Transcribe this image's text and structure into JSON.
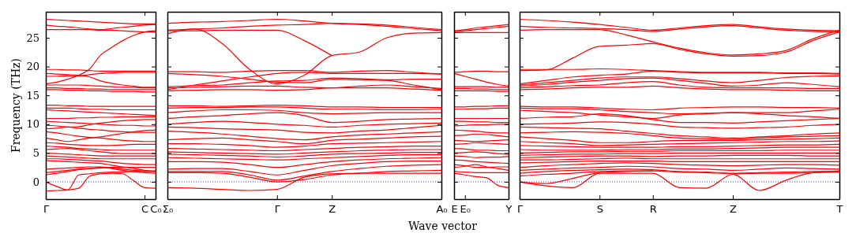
{
  "chart_data": [
    {
      "type": "line",
      "ylabel": "Frequency (THz)",
      "color": "#ff0000",
      "categories": [
        "Γ",
        null,
        null,
        null,
        null,
        null,
        null,
        null,
        null,
        "C",
        "C₀"
      ],
      "ylim": [
        -3,
        29.5
      ],
      "yticks": [
        0,
        5,
        10,
        15,
        20,
        25
      ],
      "ref_lines": [
        {
          "axis": "y",
          "value": 0,
          "color": "#0000ff",
          "line_style": "dotted"
        }
      ],
      "series": [
        {
          "values": [
            28.2,
            28.1,
            28.0,
            27.9,
            27.8,
            27.7,
            27.6,
            27.5,
            27.4,
            27.4,
            27.4
          ]
        },
        {
          "values": [
            27.2,
            27.0,
            26.9,
            26.7,
            26.5,
            26.4,
            26.6,
            26.8,
            27.0,
            27.2,
            27.3
          ]
        },
        {
          "values": [
            26.4,
            26.4,
            26.4,
            26.4,
            26.4,
            26.3,
            26.3,
            26.2,
            26.1,
            26.0,
            26.0
          ]
        },
        {
          "values": [
            17.0,
            17.3,
            17.8,
            18.5,
            19.6,
            22.0,
            23.3,
            24.5,
            25.4,
            26.0,
            26.2
          ]
        },
        {
          "values": [
            19.5,
            19.5,
            19.4,
            19.4,
            19.3,
            19.2,
            19.2,
            19.2,
            19.2,
            19.2,
            19.2
          ]
        },
        {
          "values": [
            18.8,
            18.7,
            18.6,
            18.5,
            18.2,
            17.5,
            17.1,
            16.8,
            16.6,
            16.4,
            16.4
          ]
        },
        {
          "values": [
            18.3,
            18.3,
            18.4,
            18.4,
            18.6,
            18.8,
            18.9,
            19.0,
            19.0,
            19.0,
            19.0
          ]
        },
        {
          "values": [
            16.8,
            16.8,
            16.8,
            16.8,
            16.7,
            16.6,
            16.5,
            16.4,
            16.4,
            16.3,
            16.3
          ]
        },
        {
          "values": [
            16.3,
            16.3,
            16.2,
            16.2,
            16.1,
            16.1,
            16.0,
            16.0,
            16.0,
            16.0,
            16.0
          ]
        },
        {
          "values": [
            16.0,
            16.0,
            15.9,
            15.9,
            15.8,
            15.8,
            15.7,
            15.7,
            15.7,
            15.6,
            15.6
          ]
        },
        {
          "values": [
            13.3,
            13.3,
            13.2,
            13.2,
            13.1,
            13.1,
            13.1,
            13.1,
            13.1,
            13.1,
            13.1
          ]
        },
        {
          "values": [
            12.8,
            12.8,
            12.8,
            12.7,
            12.6,
            12.6,
            12.5,
            12.5,
            12.5,
            12.5,
            12.5
          ]
        },
        {
          "values": [
            12.5,
            12.4,
            12.3,
            12.2,
            12.1,
            12.0,
            11.9,
            11.8,
            11.7,
            11.6,
            11.5
          ]
        },
        {
          "values": [
            11.0,
            11.0,
            11.0,
            11.1,
            11.1,
            11.2,
            11.2,
            11.3,
            11.3,
            11.3,
            11.3
          ]
        },
        {
          "values": [
            10.5,
            10.4,
            10.3,
            10.2,
            10.1,
            10.0,
            9.9,
            9.8,
            9.8,
            9.7,
            9.7
          ]
        },
        {
          "values": [
            9.8,
            9.7,
            9.5,
            9.6,
            9.9,
            10.2,
            10.4,
            10.6,
            10.7,
            10.8,
            10.8
          ]
        },
        {
          "values": [
            9.2,
            9.3,
            9.5,
            9.3,
            9.1,
            9.0,
            8.8,
            8.7,
            8.6,
            8.6,
            8.6
          ]
        },
        {
          "values": [
            8.7,
            8.5,
            8.2,
            7.9,
            7.7,
            7.6,
            7.4,
            7.2,
            7.1,
            7.0,
            7.0
          ]
        },
        {
          "values": [
            7.6,
            7.3,
            7.0,
            7.3,
            7.6,
            7.8,
            8.1,
            8.4,
            8.7,
            8.9,
            9.0
          ]
        },
        {
          "values": [
            6.8,
            6.7,
            6.5,
            6.4,
            6.3,
            6.3,
            6.3,
            6.4,
            6.5,
            6.5,
            6.5
          ]
        },
        {
          "values": [
            6.2,
            6.1,
            6.0,
            5.8,
            5.7,
            5.6,
            5.5,
            5.5,
            5.5,
            5.5,
            5.5
          ]
        },
        {
          "values": [
            5.6,
            5.7,
            5.8,
            5.6,
            5.4,
            5.2,
            5.0,
            4.9,
            4.9,
            4.9,
            4.9
          ]
        },
        {
          "values": [
            5.0,
            4.9,
            4.8,
            4.7,
            4.6,
            4.5,
            4.5,
            4.5,
            4.5,
            4.5,
            4.5
          ]
        },
        {
          "values": [
            4.5,
            4.4,
            4.3,
            4.2,
            4.1,
            4.0,
            4.0,
            4.0,
            4.0,
            4.0,
            4.0
          ]
        },
        {
          "values": [
            4.0,
            4.0,
            3.9,
            3.8,
            3.7,
            3.6,
            3.4,
            3.2,
            3.1,
            3.0,
            3.0
          ]
        },
        {
          "values": [
            3.7,
            3.6,
            3.5,
            3.4,
            3.3,
            3.2,
            2.9,
            2.6,
            2.5,
            2.5,
            2.5
          ]
        },
        {
          "values": [
            2.2,
            2.3,
            2.4,
            2.5,
            2.6,
            2.6,
            2.4,
            2.2,
            2.0,
            1.9,
            1.8
          ]
        },
        {
          "values": [
            1.6,
            1.8,
            2.0,
            2.2,
            2.3,
            2.4,
            2.5,
            2.5,
            2.3,
            2.0,
            1.9
          ]
        },
        {
          "values": [
            1.2,
            1.5,
            1.8,
            2.1,
            2.3,
            2.5,
            2.3,
            2.0,
            1.8,
            1.6,
            1.5
          ]
        },
        {
          "values": [
            0,
            -0.8,
            -1.4,
            1.2,
            1.4,
            1.6,
            1.7,
            1.7,
            1.8,
            1.8,
            1.8
          ]
        },
        {
          "values": [
            -1.6,
            -1.5,
            -1.4,
            -1.1,
            1.0,
            1.4,
            1.5,
            1.4,
            0.2,
            -1.0,
            -1.1
          ]
        }
      ]
    },
    {
      "type": "line",
      "color": "#ff0000",
      "xlabel": "Wave vector",
      "tick_labels": "x",
      "categories": [
        "Σ₀",
        null,
        null,
        null,
        "Γ",
        null,
        "Z",
        null,
        null,
        null,
        "A₀"
      ],
      "ylim": [
        -3,
        29.5
      ],
      "yticks": [
        0,
        5,
        10,
        15,
        20,
        25
      ],
      "ref_lines": [
        {
          "axis": "y",
          "value": 0,
          "color": "#0000ff",
          "line_style": "dotted"
        }
      ],
      "series": [
        {
          "values": [
            27.5,
            27.7,
            27.8,
            28.0,
            28.2,
            27.9,
            27.5,
            27.3,
            27.0,
            26.6,
            26.2
          ]
        },
        {
          "values": [
            26.3,
            26.5,
            26.7,
            27.0,
            27.2,
            27.3,
            27.5,
            27.4,
            27.2,
            26.8,
            26.4
          ]
        },
        {
          "values": [
            25.7,
            26.5,
            24.0,
            19.5,
            17.0,
            18.5,
            21.9,
            22.5,
            25.0,
            25.8,
            25.9
          ]
        },
        {
          "values": [
            26.2,
            26.2,
            26.3,
            26.3,
            26.3,
            24.5,
            21.9,
            null,
            null,
            null,
            null
          ]
        },
        {
          "values": [
            19.1,
            19.1,
            19.0,
            19.2,
            19.3,
            19.3,
            19.0,
            19.2,
            19.3,
            19.0,
            18.7
          ]
        },
        {
          "values": [
            18.8,
            18.6,
            18.3,
            17.8,
            17.3,
            17.2,
            17.8,
            17.7,
            17.6,
            16.8,
            16.0
          ]
        },
        {
          "values": [
            16.0,
            16.8,
            17.5,
            18.2,
            18.8,
            19.0,
            18.8,
            18.8,
            18.8,
            18.8,
            18.7
          ]
        },
        {
          "values": [
            16.5,
            16.7,
            16.8,
            17.2,
            17.5,
            17.6,
            18.0,
            17.9,
            17.7,
            17.8,
            17.8
          ]
        },
        {
          "values": [
            16.3,
            16.4,
            16.5,
            16.6,
            16.6,
            16.4,
            16.3,
            16.6,
            16.8,
            16.5,
            16.2
          ]
        },
        {
          "values": [
            15.8,
            15.9,
            16.0,
            16.0,
            15.9,
            16.0,
            16.3,
            16.3,
            16.3,
            16.1,
            15.9
          ]
        },
        {
          "values": [
            13.2,
            13.2,
            13.1,
            13.2,
            13.3,
            13.2,
            13.0,
            13.0,
            12.9,
            12.9,
            12.9
          ]
        },
        {
          "values": [
            12.8,
            12.9,
            12.9,
            13.0,
            13.0,
            12.8,
            12.6,
            12.6,
            12.5,
            12.5,
            12.6
          ]
        },
        {
          "values": [
            12.0,
            12.3,
            12.5,
            12.5,
            12.4,
            12.0,
            11.8,
            11.9,
            12.0,
            12.0,
            12.0
          ]
        },
        {
          "values": [
            11.0,
            11.3,
            11.5,
            11.8,
            12.0,
            11.5,
            10.3,
            10.5,
            10.8,
            10.9,
            11.0
          ]
        },
        {
          "values": [
            10.0,
            10.3,
            10.5,
            10.3,
            10.0,
            9.8,
            9.5,
            9.8,
            10.0,
            10.1,
            10.2
          ]
        },
        {
          "values": [
            9.5,
            9.4,
            9.2,
            9.1,
            9.0,
            8.6,
            8.5,
            8.8,
            9.0,
            9.4,
            9.8
          ]
        },
        {
          "values": [
            8.8,
            8.6,
            8.3,
            7.9,
            7.5,
            7.3,
            7.8,
            8.1,
            8.3,
            8.5,
            8.7
          ]
        },
        {
          "values": [
            7.3,
            7.5,
            7.6,
            7.3,
            7.0,
            6.6,
            7.2,
            7.4,
            7.6,
            7.8,
            7.9
          ]
        },
        {
          "values": [
            6.6,
            6.6,
            6.5,
            6.3,
            6.0,
            6.2,
            6.6,
            6.7,
            6.8,
            6.9,
            7.0
          ]
        },
        {
          "values": [
            5.8,
            5.7,
            5.6,
            5.5,
            5.4,
            5.6,
            5.8,
            6.0,
            6.1,
            6.2,
            6.2
          ]
        },
        {
          "values": [
            5.2,
            5.1,
            5.0,
            4.9,
            4.8,
            5.0,
            5.2,
            5.4,
            5.5,
            5.6,
            5.6
          ]
        },
        {
          "values": [
            4.8,
            4.7,
            4.6,
            4.5,
            4.3,
            4.5,
            4.8,
            4.9,
            5.0,
            5.1,
            5.1
          ]
        },
        {
          "values": [
            4.2,
            4.1,
            4.0,
            3.9,
            3.8,
            4.0,
            4.2,
            4.4,
            4.6,
            4.7,
            4.7
          ]
        },
        {
          "values": [
            3.5,
            3.5,
            3.4,
            3.0,
            2.5,
            3.0,
            3.5,
            3.8,
            4.0,
            4.1,
            4.2
          ]
        },
        {
          "values": [
            2.2,
            2.3,
            2.3,
            1.8,
            1.2,
            2.0,
            2.8,
            3.2,
            3.5,
            3.6,
            3.6
          ]
        },
        {
          "values": [
            1.8,
            1.8,
            1.8,
            1.2,
            0.3,
            1.0,
            1.8,
            2.3,
            2.7,
            2.9,
            3.0
          ]
        },
        {
          "values": [
            1.6,
            1.6,
            1.5,
            0.8,
            0,
            0.4,
            1.2,
            1.5,
            1.8,
            1.9,
            2.0
          ]
        },
        {
          "values": [
            -1.0,
            -1.1,
            -1.3,
            -1.5,
            -1.3,
            0.8,
            1.4,
            1.5,
            1.5,
            1.5,
            1.5
          ]
        }
      ]
    },
    {
      "type": "line",
      "color": "#ff0000",
      "tick_labels": "x",
      "categories": [
        "E",
        "E₀",
        null,
        null,
        null,
        "Y"
      ],
      "ylim": [
        -3,
        29.5
      ],
      "yticks": [
        0,
        5,
        10,
        15,
        20,
        25
      ],
      "ref_lines": [
        {
          "axis": "y",
          "value": 0,
          "color": "#0000ff",
          "line_style": "dotted"
        }
      ],
      "series": [
        {
          "values": [
            26.2,
            26.4,
            26.7,
            26.9,
            27.1,
            27.3
          ]
        },
        {
          "values": [
            26.0,
            26.2,
            26.4,
            26.6,
            26.8,
            27.0
          ]
        },
        {
          "values": [
            25.9,
            25.9,
            25.9,
            25.9,
            25.9,
            25.9
          ]
        },
        {
          "values": [
            19.0,
            19.1,
            19.2,
            19.2,
            19.1,
            19.1
          ]
        },
        {
          "values": [
            18.8,
            18.3,
            17.8,
            17.3,
            16.9,
            16.6
          ]
        },
        {
          "values": [
            16.5,
            16.5,
            16.5,
            16.5,
            16.4,
            16.4
          ]
        },
        {
          "values": [
            16.2,
            16.2,
            16.1,
            16.1,
            16.0,
            16.0
          ]
        },
        {
          "values": [
            15.8,
            15.8,
            15.8,
            15.8,
            15.7,
            15.7
          ]
        },
        {
          "values": [
            13.0,
            13.0,
            13.1,
            13.1,
            13.2,
            13.2
          ]
        },
        {
          "values": [
            12.6,
            12.6,
            12.7,
            12.7,
            12.8,
            12.8
          ]
        },
        {
          "values": [
            11.0,
            11.0,
            11.0,
            11.0,
            11.0,
            11.0
          ]
        },
        {
          "values": [
            10.5,
            10.5,
            10.4,
            10.4,
            10.3,
            10.3
          ]
        },
        {
          "values": [
            9.7,
            9.8,
            9.9,
            9.9,
            10.0,
            10.0
          ]
        },
        {
          "values": [
            9.0,
            8.9,
            8.8,
            8.6,
            8.5,
            8.5
          ]
        },
        {
          "values": [
            8.0,
            8.1,
            8.3,
            8.2,
            8.0,
            7.8
          ]
        },
        {
          "values": [
            7.2,
            7.1,
            7.0,
            7.1,
            7.2,
            7.3
          ]
        },
        {
          "values": [
            6.5,
            6.6,
            6.8,
            6.7,
            6.6,
            6.5
          ]
        },
        {
          "values": [
            5.8,
            5.7,
            5.5,
            5.5,
            5.4,
            5.4
          ]
        },
        {
          "values": [
            5.0,
            5.1,
            5.2,
            5.1,
            4.9,
            4.8
          ]
        },
        {
          "values": [
            4.5,
            4.4,
            4.2,
            4.3,
            4.3,
            4.4
          ]
        },
        {
          "values": [
            3.8,
            3.7,
            3.5,
            3.4,
            3.3,
            3.2
          ]
        },
        {
          "values": [
            3.0,
            2.8,
            2.5,
            2.5,
            2.6,
            2.6
          ]
        },
        {
          "values": [
            2.5,
            2.7,
            3.0,
            2.6,
            2.3,
            2.0
          ]
        },
        {
          "values": [
            1.8,
            1.7,
            1.6,
            1.6,
            1.6,
            1.6
          ]
        },
        {
          "values": [
            1.5,
            1.2,
            0.9,
            0.7,
            -0.6,
            -1.0
          ]
        }
      ]
    },
    {
      "type": "line",
      "color": "#ff0000",
      "tick_labels": "x",
      "categories": [
        "Γ",
        null,
        null,
        "S",
        null,
        "R",
        null,
        null,
        "Z",
        null,
        null,
        null,
        "T"
      ],
      "ylim": [
        -3,
        29.5
      ],
      "yticks": [
        0,
        5,
        10,
        15,
        20,
        25
      ],
      "ref_lines": [
        {
          "axis": "y",
          "value": 0,
          "color": "#0000ff",
          "line_style": "dotted"
        }
      ],
      "series": [
        {
          "values": [
            28.2,
            28.0,
            27.7,
            27.3,
            26.8,
            26.3,
            26.7,
            27.1,
            27.3,
            26.9,
            26.5,
            26.3,
            26.2
          ]
        },
        {
          "values": [
            27.0,
            26.8,
            26.7,
            26.6,
            26.4,
            26.1,
            26.5,
            26.9,
            27.1,
            26.7,
            26.3,
            26.1,
            26.0
          ]
        },
        {
          "values": [
            26.3,
            26.4,
            26.4,
            26.4,
            25.5,
            24.3,
            23.2,
            22.4,
            22.0,
            22.2,
            22.8,
            24.8,
            26.3
          ]
        },
        {
          "values": [
            19.3,
            19.4,
            21.5,
            23.5,
            23.7,
            24.0,
            23.0,
            22.2,
            21.8,
            21.9,
            22.5,
            24.5,
            26.0
          ]
        },
        {
          "values": [
            19.5,
            19.5,
            19.5,
            19.6,
            19.5,
            19.3,
            19.1,
            19.0,
            19.0,
            19.0,
            18.9,
            18.9,
            18.8
          ]
        },
        {
          "values": [
            17.0,
            17.6,
            18.2,
            18.5,
            18.7,
            19.2,
            19.0,
            18.9,
            18.9,
            18.9,
            18.8,
            18.8,
            18.7
          ]
        },
        {
          "values": [
            16.8,
            17.2,
            17.6,
            18.0,
            18.2,
            18.2,
            17.9,
            17.5,
            17.2,
            17.6,
            18.1,
            18.3,
            18.4
          ]
        },
        {
          "values": [
            16.6,
            16.9,
            17.3,
            17.6,
            17.9,
            18.0,
            17.6,
            17.1,
            16.6,
            16.8,
            17.2,
            16.9,
            16.5
          ]
        },
        {
          "values": [
            16.3,
            16.5,
            16.7,
            16.8,
            17.2,
            17.4,
            16.8,
            16.4,
            16.3,
            16.3,
            16.3,
            16.2,
            16.2
          ]
        },
        {
          "values": [
            16.0,
            16.1,
            16.3,
            16.4,
            16.4,
            16.6,
            16.3,
            16.1,
            16.0,
            16.0,
            15.9,
            15.8,
            15.8
          ]
        },
        {
          "values": [
            13.1,
            13.0,
            13.0,
            12.8,
            12.6,
            12.5,
            12.8,
            12.9,
            13.0,
            13.0,
            12.9,
            12.9,
            12.8
          ]
        },
        {
          "values": [
            12.8,
            12.7,
            12.7,
            12.5,
            12.2,
            12.0,
            11.8,
            11.9,
            12.0,
            12.0,
            12.0,
            12.3,
            12.6
          ]
        },
        {
          "values": [
            12.4,
            12.2,
            12.0,
            11.6,
            11.3,
            11.0,
            11.6,
            11.8,
            12.0,
            11.8,
            11.5,
            11.3,
            11.0
          ]
        },
        {
          "values": [
            11.0,
            11.2,
            11.3,
            11.8,
            11.5,
            10.8,
            10.3,
            10.3,
            10.2,
            10.4,
            10.6,
            10.8,
            11.0
          ]
        },
        {
          "values": [
            10.0,
            10.1,
            10.2,
            10.4,
            10.3,
            10.0,
            9.5,
            9.4,
            9.3,
            9.4,
            9.5,
            9.8,
            10.0
          ]
        },
        {
          "values": [
            9.5,
            9.4,
            9.3,
            9.2,
            8.8,
            8.4,
            8.0,
            7.8,
            7.6,
            7.8,
            8.0,
            8.3,
            8.5
          ]
        },
        {
          "values": [
            8.5,
            8.6,
            8.7,
            8.6,
            8.4,
            8.0,
            7.6,
            7.5,
            7.4,
            7.6,
            7.8,
            7.9,
            8.0
          ]
        },
        {
          "values": [
            7.8,
            7.5,
            7.2,
            6.8,
            6.8,
            7.0,
            7.2,
            7.2,
            7.2,
            7.3,
            7.4,
            7.5,
            7.6
          ]
        },
        {
          "values": [
            7.0,
            6.8,
            6.6,
            6.3,
            6.4,
            6.5,
            6.6,
            6.7,
            6.8,
            6.9,
            7.0,
            7.0,
            7.1
          ]
        },
        {
          "values": [
            6.3,
            6.2,
            6.1,
            6.0,
            6.0,
            6.0,
            6.1,
            6.1,
            6.2,
            6.3,
            6.4,
            6.4,
            6.5
          ]
        },
        {
          "values": [
            5.6,
            5.5,
            5.5,
            5.5,
            5.6,
            5.6,
            5.7,
            5.7,
            5.8,
            5.9,
            6.0,
            6.0,
            6.0
          ]
        },
        {
          "values": [
            5.0,
            5.1,
            5.2,
            5.2,
            5.3,
            5.3,
            5.4,
            5.4,
            5.4,
            5.4,
            5.5,
            5.5,
            5.5
          ]
        },
        {
          "values": [
            4.6,
            4.7,
            4.8,
            4.8,
            4.9,
            4.9,
            5.0,
            5.0,
            5.0,
            5.0,
            5.0,
            5.0,
            5.0
          ]
        },
        {
          "values": [
            4.2,
            4.3,
            4.4,
            4.5,
            4.5,
            4.4,
            4.5,
            4.5,
            4.6,
            4.6,
            4.6,
            4.5,
            4.5
          ]
        },
        {
          "values": [
            3.8,
            3.8,
            3.9,
            4.0,
            4.1,
            4.0,
            4.0,
            4.0,
            4.0,
            4.0,
            4.0,
            4.0,
            4.0
          ]
        },
        {
          "values": [
            3.3,
            3.4,
            3.5,
            3.6,
            3.6,
            3.6,
            3.5,
            3.5,
            3.5,
            3.5,
            3.5,
            3.5,
            3.5
          ]
        },
        {
          "values": [
            2.5,
            2.8,
            3.0,
            3.2,
            3.3,
            3.2,
            3.0,
            2.9,
            2.8,
            2.9,
            3.0,
            3.0,
            2.9
          ]
        },
        {
          "values": [
            2.0,
            2.2,
            2.4,
            2.5,
            2.7,
            2.6,
            2.3,
            2.2,
            2.0,
            2.2,
            2.4,
            2.3,
            2.2
          ]
        },
        {
          "values": [
            1.5,
            1.8,
            2.0,
            2.1,
            2.2,
            2.1,
            1.8,
            1.7,
            1.5,
            1.6,
            1.7,
            1.8,
            1.8
          ]
        },
        {
          "values": [
            1.0,
            1.3,
            1.5,
            1.8,
            1.9,
            1.9,
            1.7,
            1.6,
            1.4,
            1.5,
            1.5,
            1.6,
            1.7
          ]
        },
        {
          "values": [
            0,
            -0.7,
            -1.0,
            1.5,
            1.5,
            1.5,
            -1.0,
            -1.1,
            1.3,
            -1.5,
            0.3,
            1.6,
            1.9
          ]
        },
        {
          "values": [
            0,
            -0.3,
            0.6,
            1.6,
            1.8,
            1.9,
            null,
            null,
            null,
            null,
            null,
            null,
            null
          ]
        }
      ]
    }
  ]
}
